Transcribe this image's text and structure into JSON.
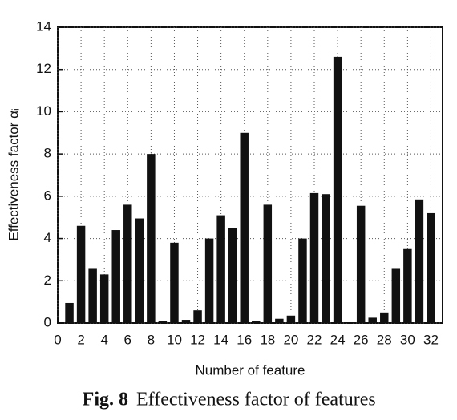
{
  "chart_data": {
    "type": "bar",
    "fig_label": "Fig. 8",
    "title": "Effectiveness factor of features",
    "x_label": "Number of feature",
    "y_label": "Effectiveness factor αᵢ",
    "x": [
      1,
      2,
      3,
      4,
      5,
      6,
      7,
      8,
      9,
      10,
      11,
      12,
      13,
      14,
      15,
      16,
      17,
      18,
      19,
      20,
      21,
      22,
      23,
      24,
      25,
      26,
      27,
      28,
      29,
      30,
      31,
      32
    ],
    "values": [
      0.95,
      4.6,
      2.6,
      2.3,
      4.4,
      5.6,
      4.95,
      8.0,
      0.1,
      3.8,
      0.15,
      0.6,
      4.0,
      5.1,
      4.5,
      9.0,
      0.1,
      5.6,
      0.2,
      0.35,
      4.0,
      6.15,
      6.1,
      12.6,
      0.02,
      5.55,
      0.25,
      0.5,
      2.6,
      3.5,
      5.85,
      5.2
    ],
    "color": "#111111",
    "xlim": [
      0,
      33
    ],
    "xticks": [
      0,
      2,
      4,
      6,
      8,
      10,
      12,
      14,
      16,
      18,
      20,
      22,
      24,
      26,
      28,
      30,
      32
    ],
    "ylim": [
      0,
      14
    ],
    "yticks": [
      0,
      2,
      4,
      6,
      8,
      10,
      12,
      14
    ],
    "grid": true
  }
}
